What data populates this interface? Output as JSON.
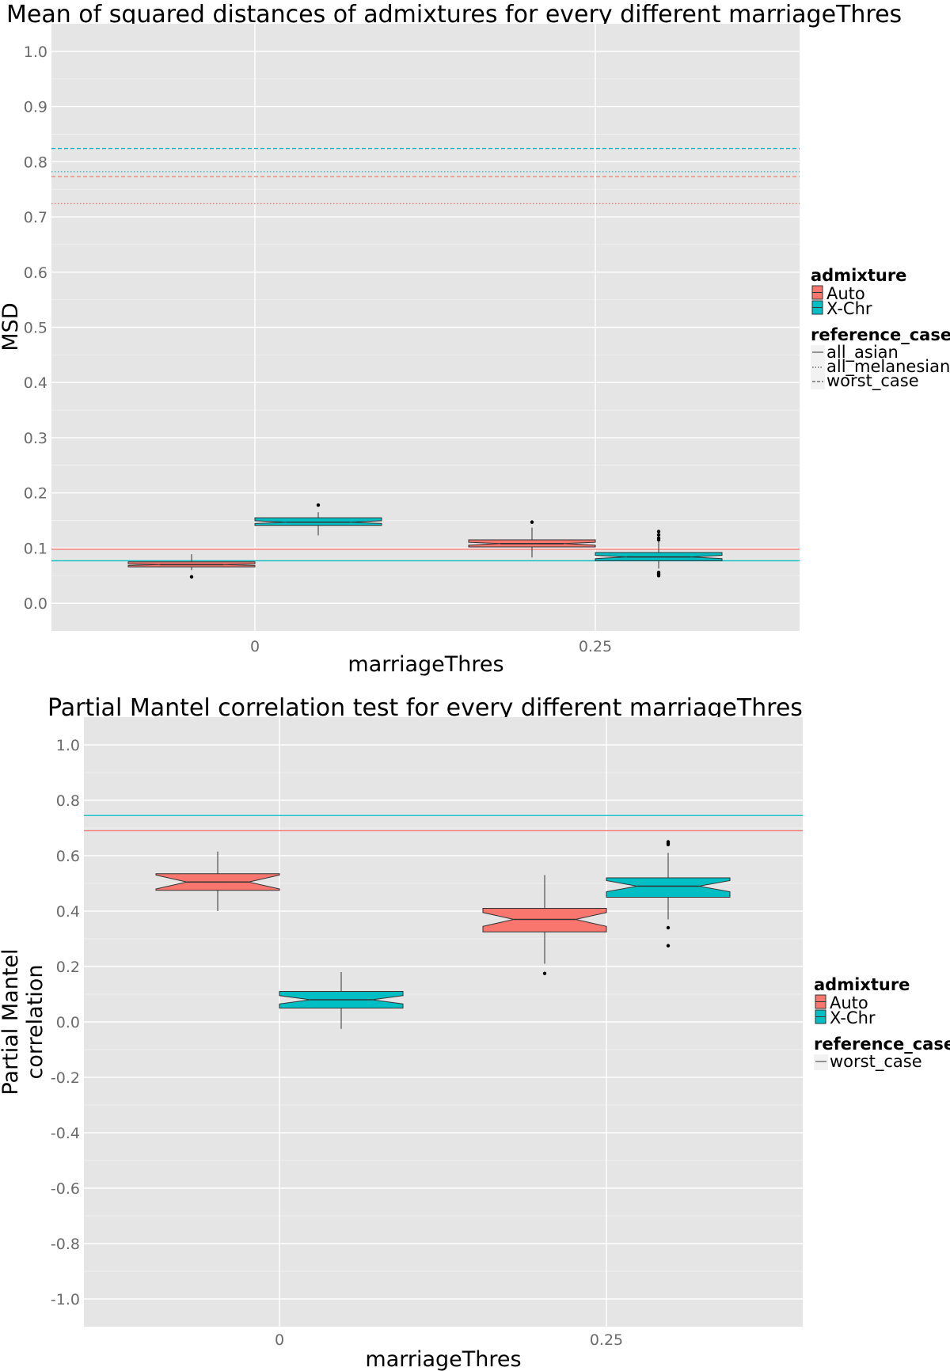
{
  "chart_data": [
    {
      "type": "box",
      "title": "Mean of squared distances of admixtures for every different marriageThres",
      "xlabel": "marriageThres",
      "ylabel": "MSD",
      "categories": [
        "0",
        "0.25"
      ],
      "ylim": [
        -0.05,
        1.05
      ],
      "yticks": [
        0.0,
        0.1,
        0.2,
        0.3,
        0.4,
        0.5,
        0.6,
        0.7,
        0.8,
        0.9,
        1.0
      ],
      "ytick_labels": [
        "0.0",
        "0.1",
        "0.2",
        "0.3",
        "0.4",
        "0.5",
        "0.6",
        "0.7",
        "0.8",
        "0.9",
        "1.0"
      ],
      "grid": true,
      "notched": true,
      "legend_position": "right",
      "legend": {
        "fill_title": "admixture",
        "fill_entries": [
          "Auto",
          "X-Chr"
        ],
        "linetype_title": "reference_case",
        "linetype_entries": [
          "all_asian",
          "all_melanesian",
          "worst_case"
        ]
      },
      "series": [
        {
          "name": "Auto",
          "color": "#F8766D",
          "boxes": [
            {
              "category": "0",
              "whisker_low": 0.06,
              "q1": 0.066,
              "median": 0.07,
              "q3": 0.075,
              "whisker_high": 0.089,
              "notch": [
                0.0685,
                0.0715
              ],
              "outliers": [
                0.048
              ]
            },
            {
              "category": "0.25",
              "whisker_low": 0.083,
              "q1": 0.102,
              "median": 0.108,
              "q3": 0.115,
              "whisker_high": 0.137,
              "notch": [
                0.1055,
                0.1105
              ],
              "outliers": [
                0.147
              ]
            }
          ]
        },
        {
          "name": "X-Chr",
          "color": "#00BFC4",
          "boxes": [
            {
              "category": "0",
              "whisker_low": 0.123,
              "q1": 0.141,
              "median": 0.147,
              "q3": 0.155,
              "whisker_high": 0.165,
              "notch": [
                0.1445,
                0.1495
              ],
              "outliers": [
                0.178
              ]
            },
            {
              "category": "0.25",
              "whisker_low": 0.063,
              "q1": 0.077,
              "median": 0.084,
              "q3": 0.092,
              "whisker_high": 0.113,
              "notch": [
                0.081,
                0.087
              ],
              "outliers": [
                0.13,
                0.124,
                0.118,
                0.115,
                0.056,
                0.053,
                0.05
              ]
            }
          ]
        }
      ],
      "reference_lines": [
        {
          "admixture": "Auto",
          "reference_case": "worst_case",
          "linetype": "dashed",
          "y": 0.773
        },
        {
          "admixture": "Auto",
          "reference_case": "all_melanesian",
          "linetype": "dotted",
          "y": 0.724
        },
        {
          "admixture": "Auto",
          "reference_case": "all_asian",
          "linetype": "solid",
          "y": 0.098
        },
        {
          "admixture": "X-Chr",
          "reference_case": "worst_case",
          "linetype": "dashed",
          "y": 0.824
        },
        {
          "admixture": "X-Chr",
          "reference_case": "all_melanesian",
          "linetype": "dotted",
          "y": 0.782
        },
        {
          "admixture": "X-Chr",
          "reference_case": "all_asian",
          "linetype": "solid",
          "y": 0.077
        }
      ]
    },
    {
      "type": "box",
      "title": "Partial Mantel correlation test for every different marriageThres",
      "xlabel": "marriageThres",
      "ylabel": "Partial Mantel\ncorrelation",
      "ylabel_lines": [
        "Partial Mantel",
        "correlation"
      ],
      "categories": [
        "0",
        "0.25"
      ],
      "ylim": [
        -1.1,
        1.1
      ],
      "yticks": [
        -1.0,
        -0.8,
        -0.6,
        -0.4,
        -0.2,
        0.0,
        0.2,
        0.4,
        0.6,
        0.8,
        1.0
      ],
      "ytick_labels": [
        "-1.0",
        "-0.8",
        "-0.6",
        "-0.4",
        "-0.2",
        "0.0",
        "0.2",
        "0.4",
        "0.6",
        "0.8",
        "1.0"
      ],
      "grid": true,
      "notched": true,
      "legend_position": "right",
      "legend": {
        "fill_title": "admixture",
        "fill_entries": [
          "Auto",
          "X-Chr"
        ],
        "linetype_title": "reference_case",
        "linetype_entries": [
          "worst_case"
        ]
      },
      "series": [
        {
          "name": "Auto",
          "color": "#F8766D",
          "boxes": [
            {
              "category": "0",
              "whisker_low": 0.4,
              "q1": 0.475,
              "median": 0.505,
              "q3": 0.535,
              "whisker_high": 0.615,
              "notch": [
                0.48,
                0.53
              ],
              "outliers": []
            },
            {
              "category": "0.25",
              "whisker_low": 0.21,
              "q1": 0.325,
              "median": 0.37,
              "q3": 0.41,
              "whisker_high": 0.53,
              "notch": [
                0.345,
                0.395
              ],
              "outliers": [
                0.175
              ]
            }
          ]
        },
        {
          "name": "X-Chr",
          "color": "#00BFC4",
          "boxes": [
            {
              "category": "0",
              "whisker_low": -0.025,
              "q1": 0.05,
              "median": 0.08,
              "q3": 0.11,
              "whisker_high": 0.18,
              "notch": [
                0.065,
                0.095
              ],
              "outliers": []
            },
            {
              "category": "0.25",
              "whisker_low": 0.37,
              "q1": 0.45,
              "median": 0.49,
              "q3": 0.52,
              "whisker_high": 0.61,
              "notch": [
                0.47,
                0.51
              ],
              "outliers": [
                0.65,
                0.645,
                0.64,
                0.34,
                0.275
              ]
            }
          ]
        }
      ],
      "reference_lines": [
        {
          "admixture": "Auto",
          "reference_case": "worst_case",
          "linetype": "solid",
          "y": 0.69
        },
        {
          "admixture": "X-Chr",
          "reference_case": "worst_case",
          "linetype": "solid",
          "y": 0.745
        }
      ]
    }
  ]
}
